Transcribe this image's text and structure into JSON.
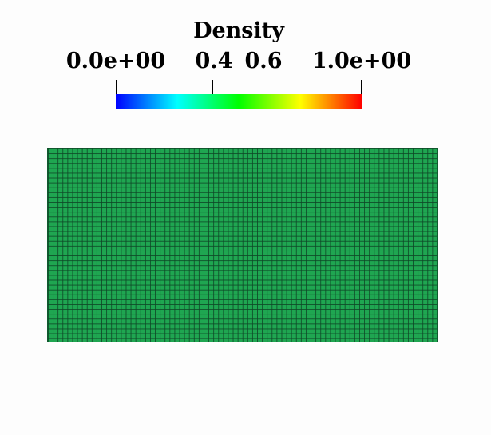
{
  "legend": {
    "title": "Density",
    "ticks": [
      {
        "label": "0.0e+00",
        "value": 0.0
      },
      {
        "label": "0.4",
        "value": 0.4
      },
      {
        "label": "0.6",
        "value": 0.6
      },
      {
        "label": "1.0e+00",
        "value": 1.0
      }
    ],
    "colormap": [
      "#0000ff",
      "#00ffff",
      "#00ff00",
      "#ffff00",
      "#ff0000"
    ]
  },
  "mesh": {
    "field_value": 0.5,
    "fill_color": "#1fa651",
    "edge_color": "#0e4626"
  }
}
